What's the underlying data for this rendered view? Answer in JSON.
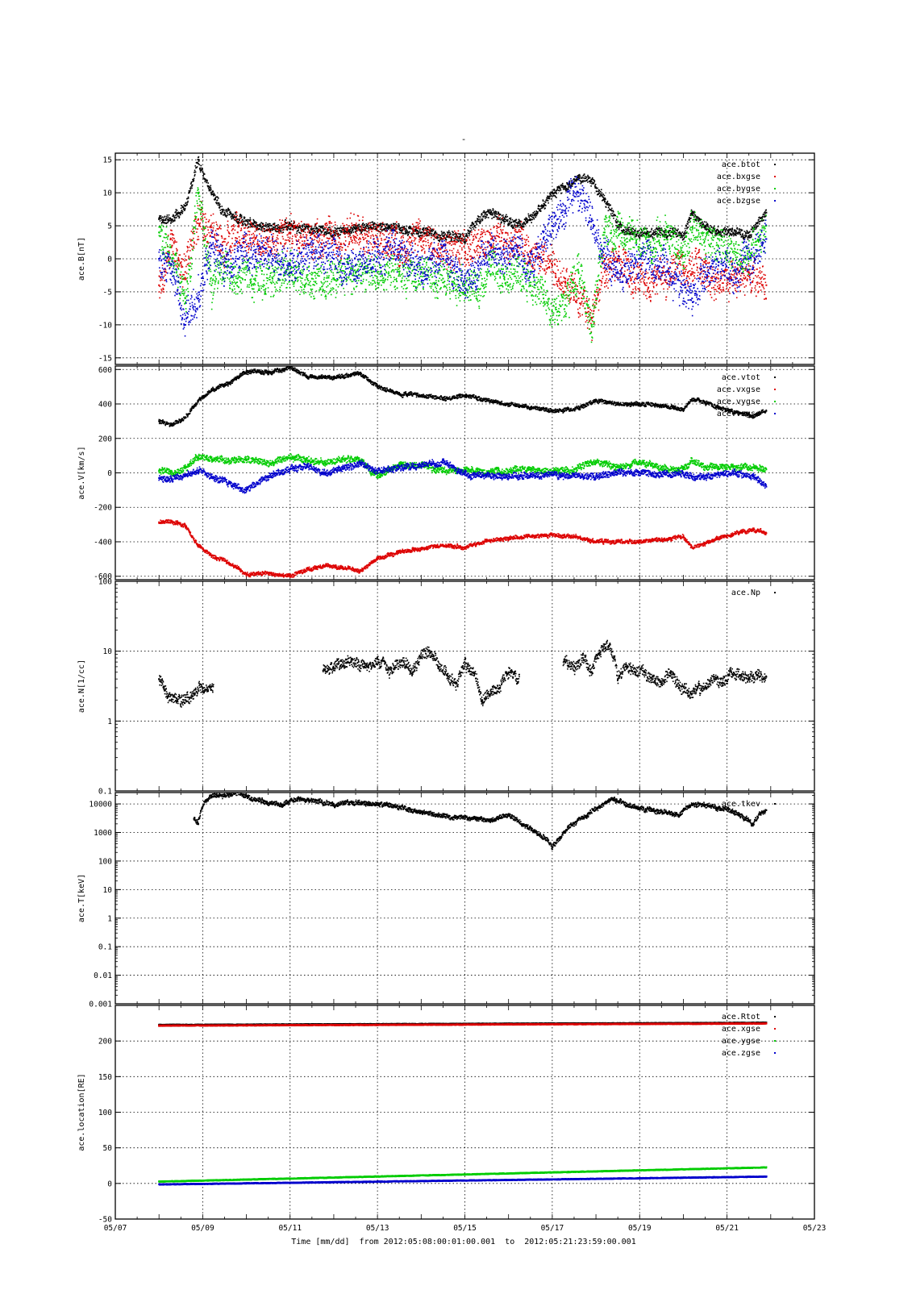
{
  "figure": {
    "title": "-",
    "footer": "Time [mm/dd]  from 2012:05:08:00:01:00.001  to  2012:05:21:23:59:00.001"
  },
  "chart_data": [
    {
      "type": "scatter",
      "ylabel": "ace.B[nT]",
      "xlim": [
        "05/07",
        "05/23"
      ],
      "ylim": [
        -16,
        16
      ],
      "yticks": [
        -15,
        -10,
        -5,
        0,
        5,
        10,
        15
      ],
      "ytick_labels": [
        "-15",
        "-10",
        "-5",
        "0",
        "5",
        "10",
        "15"
      ],
      "yscale": "linear",
      "grid": true,
      "legend": "top-right",
      "series": [
        {
          "name": "ace.btot",
          "color": "#000000",
          "x": [
            8.0,
            8.3,
            8.6,
            8.9,
            9.2,
            9.5,
            9.8,
            10.2,
            10.6,
            11.0,
            11.5,
            12.0,
            12.5,
            13.0,
            13.5,
            14.0,
            14.5,
            15.0,
            15.3,
            15.6,
            15.9,
            16.2,
            16.5,
            16.8,
            17.0,
            17.3,
            17.6,
            17.9,
            18.2,
            18.5,
            18.8,
            19.2,
            19.6,
            20.0,
            20.2,
            20.5,
            20.8,
            21.2,
            21.5,
            21.9
          ],
          "y": [
            6,
            6,
            8,
            15,
            10,
            7,
            6,
            5,
            4.5,
            5,
            4.5,
            4,
            4.5,
            5,
            4.5,
            4,
            3.5,
            3,
            6,
            7,
            6,
            5,
            6,
            8,
            10,
            11,
            12,
            12,
            9,
            5,
            4,
            4,
            4,
            3.5,
            7,
            5,
            4,
            4,
            3.5,
            7
          ]
        },
        {
          "name": "ace.bxgse",
          "color": "#dd0000",
          "x": [
            8.0,
            8.3,
            8.6,
            8.9,
            9.2,
            9.5,
            9.8,
            10.2,
            10.6,
            11.0,
            11.5,
            12.0,
            12.5,
            13.0,
            13.5,
            14.0,
            14.5,
            15.0,
            15.3,
            15.6,
            15.9,
            16.2,
            16.5,
            16.8,
            17.0,
            17.3,
            17.6,
            17.9,
            18.2,
            18.5,
            18.8,
            19.2,
            19.6,
            20.0,
            20.2,
            20.5,
            20.8,
            21.2,
            21.5,
            21.9
          ],
          "y": [
            -4,
            2,
            -2,
            6,
            4,
            3,
            4,
            3,
            3,
            4,
            3,
            3,
            4,
            3,
            2,
            3,
            2,
            1,
            2,
            3,
            3,
            2,
            1,
            0,
            -1,
            -3,
            -6,
            -9,
            -2,
            0,
            -3,
            -3,
            -2,
            -1,
            -2,
            -2,
            -3,
            -3,
            -2,
            -4
          ]
        },
        {
          "name": "ace.bygse",
          "color": "#00cc00",
          "x": [
            8.0,
            8.3,
            8.6,
            8.9,
            9.2,
            9.5,
            9.8,
            10.2,
            10.6,
            11.0,
            11.5,
            12.0,
            12.5,
            13.0,
            13.5,
            14.0,
            14.5,
            15.0,
            15.3,
            15.6,
            15.9,
            16.2,
            16.5,
            16.8,
            17.0,
            17.3,
            17.6,
            17.9,
            18.2,
            18.5,
            18.8,
            19.2,
            19.6,
            20.0,
            20.2,
            20.5,
            20.8,
            21.2,
            21.5,
            21.9
          ],
          "y": [
            4,
            0,
            -6,
            10,
            -4,
            -2,
            -3,
            -3,
            -3,
            -2,
            -3,
            -3,
            -2,
            -2,
            -2,
            -2,
            -3,
            -4,
            -5,
            -1,
            -3,
            -2,
            -4,
            -6,
            -8,
            -7,
            -2,
            -10,
            4,
            5,
            3,
            2,
            4,
            1,
            4,
            3,
            2,
            1,
            0,
            5
          ]
        },
        {
          "name": "ace.bzgse",
          "color": "#0000cc",
          "x": [
            8.0,
            8.3,
            8.6,
            8.9,
            9.2,
            9.5,
            9.8,
            10.2,
            10.6,
            11.0,
            11.5,
            12.0,
            12.5,
            13.0,
            13.5,
            14.0,
            14.5,
            15.0,
            15.3,
            15.6,
            15.9,
            16.2,
            16.5,
            16.8,
            17.0,
            17.3,
            17.6,
            17.9,
            18.2,
            18.5,
            18.8,
            19.2,
            19.6,
            20.0,
            20.2,
            20.5,
            20.8,
            21.2,
            21.5,
            21.9
          ],
          "y": [
            0,
            -2,
            -10,
            -6,
            2,
            -1,
            0,
            1,
            0,
            -1,
            1,
            0,
            -1,
            0,
            1,
            -2,
            0,
            -3,
            -1,
            2,
            0,
            1,
            -2,
            3,
            5,
            8,
            10,
            6,
            0,
            -2,
            -1,
            0,
            -2,
            -4,
            -6,
            -2,
            -1,
            -2,
            0,
            3
          ]
        }
      ]
    },
    {
      "type": "scatter",
      "ylabel": "ace.V[km/s]",
      "xlim": [
        "05/07",
        "05/23"
      ],
      "ylim": [
        -620,
        620
      ],
      "yticks": [
        -600,
        -400,
        -200,
        0,
        200,
        400,
        600
      ],
      "ytick_labels": [
        "-600",
        "-400",
        "-200",
        "0",
        "200",
        "400",
        "600"
      ],
      "yscale": "linear",
      "grid": true,
      "legend": "top-right",
      "series": [
        {
          "name": "ace.vtot",
          "color": "#000000",
          "x": [
            8.0,
            8.3,
            8.6,
            8.9,
            9.2,
            9.6,
            10.0,
            10.5,
            11.0,
            11.4,
            11.8,
            12.2,
            12.6,
            13.0,
            13.5,
            14.0,
            14.5,
            15.0,
            15.5,
            16.0,
            16.5,
            17.0,
            17.5,
            18.0,
            18.5,
            19.0,
            19.5,
            20.0,
            20.2,
            20.5,
            20.8,
            21.2,
            21.6,
            21.9
          ],
          "y": [
            300,
            280,
            320,
            420,
            480,
            520,
            590,
            580,
            610,
            560,
            550,
            560,
            580,
            500,
            460,
            450,
            430,
            450,
            420,
            400,
            380,
            360,
            370,
            420,
            400,
            400,
            390,
            370,
            430,
            410,
            380,
            350,
            330,
            360
          ]
        },
        {
          "name": "ace.vxgse",
          "color": "#dd0000",
          "x": [
            8.0,
            8.3,
            8.6,
            8.9,
            9.2,
            9.6,
            10.0,
            10.5,
            11.0,
            11.4,
            11.8,
            12.2,
            12.6,
            13.0,
            13.5,
            14.0,
            14.5,
            15.0,
            15.5,
            16.0,
            16.5,
            17.0,
            17.5,
            18.0,
            18.5,
            19.0,
            19.5,
            20.0,
            20.2,
            20.5,
            20.8,
            21.2,
            21.6,
            21.9
          ],
          "y": [
            -290,
            -280,
            -310,
            -420,
            -480,
            -520,
            -590,
            -580,
            -600,
            -560,
            -540,
            -550,
            -570,
            -500,
            -460,
            -440,
            -420,
            -430,
            -400,
            -380,
            -370,
            -360,
            -370,
            -400,
            -400,
            -400,
            -390,
            -370,
            -430,
            -410,
            -380,
            -350,
            -330,
            -350
          ]
        },
        {
          "name": "ace.vygse",
          "color": "#00cc00",
          "x": [
            8.0,
            8.3,
            8.6,
            8.9,
            9.2,
            9.6,
            10.0,
            10.5,
            11.0,
            11.4,
            11.8,
            12.2,
            12.6,
            13.0,
            13.5,
            14.0,
            14.5,
            15.0,
            15.5,
            16.0,
            16.5,
            17.0,
            17.5,
            18.0,
            18.5,
            19.0,
            19.5,
            20.0,
            20.2,
            20.5,
            20.8,
            21.2,
            21.6,
            21.9
          ],
          "y": [
            10,
            0,
            30,
            90,
            80,
            70,
            80,
            60,
            90,
            70,
            60,
            80,
            70,
            -20,
            50,
            40,
            10,
            20,
            10,
            10,
            20,
            10,
            20,
            70,
            30,
            60,
            30,
            20,
            70,
            40,
            30,
            30,
            30,
            20
          ]
        },
        {
          "name": "ace.vzgse",
          "color": "#0000cc",
          "x": [
            8.0,
            8.3,
            8.6,
            8.9,
            9.2,
            9.6,
            10.0,
            10.5,
            11.0,
            11.4,
            11.8,
            12.2,
            12.6,
            13.0,
            13.5,
            14.0,
            14.5,
            15.0,
            15.5,
            16.0,
            16.5,
            17.0,
            17.5,
            18.0,
            18.5,
            19.0,
            19.5,
            20.0,
            20.2,
            20.5,
            20.8,
            21.2,
            21.6,
            21.9
          ],
          "y": [
            -30,
            -40,
            -20,
            10,
            -20,
            -60,
            -100,
            -20,
            20,
            40,
            -10,
            30,
            50,
            10,
            30,
            40,
            60,
            -10,
            -20,
            -20,
            -10,
            -10,
            -20,
            -20,
            0,
            0,
            -10,
            0,
            -20,
            -30,
            -10,
            0,
            -20,
            -80
          ]
        }
      ]
    },
    {
      "type": "scatter",
      "ylabel": "ace.N[1/cc]",
      "xlim": [
        "05/07",
        "05/23"
      ],
      "ylim": [
        0.1,
        100
      ],
      "yticks": [
        0.1,
        1,
        10,
        100
      ],
      "ytick_labels": [
        "0.1",
        "1",
        "10",
        "100"
      ],
      "yscale": "log",
      "grid": true,
      "legend": "top-right",
      "series": [
        {
          "name": "ace.Np",
          "color": "#000000",
          "x": [
            8.0,
            8.2,
            8.4,
            8.6,
            8.8,
            9.0,
            9.2,
            11.8,
            12.1,
            12.4,
            12.7,
            13.0,
            13.3,
            13.6,
            13.8,
            14.0,
            14.2,
            14.4,
            14.6,
            14.8,
            15.0,
            15.2,
            15.4,
            15.6,
            15.8,
            16.0,
            16.2,
            17.3,
            17.5,
            17.7,
            17.9,
            18.1,
            18.3,
            18.5,
            18.7,
            18.9,
            19.1,
            19.3,
            19.5,
            19.7,
            19.9,
            20.1,
            20.3,
            20.5,
            20.7,
            20.9,
            21.1,
            21.3,
            21.5,
            21.7,
            21.9
          ],
          "y": [
            4,
            2.2,
            1.9,
            2.0,
            2.5,
            3.0,
            2.8,
            5.5,
            6.5,
            7,
            6,
            6.5,
            5.5,
            7,
            5,
            8,
            10,
            6,
            4.5,
            3.5,
            6,
            5,
            2,
            2.5,
            3,
            5,
            4,
            7,
            6,
            8,
            5,
            10,
            12,
            4,
            6,
            5,
            5,
            4,
            3.5,
            5,
            3,
            2.5,
            2.8,
            3,
            4,
            3.5,
            5,
            4.5,
            4,
            4.5,
            4.3
          ]
        }
      ]
    },
    {
      "type": "scatter",
      "ylabel": "ace.T[keV]",
      "xlim": [
        "05/07",
        "05/23"
      ],
      "ylim": [
        0.001,
        25000
      ],
      "yticks": [
        0.001,
        0.01,
        0.1,
        1,
        10,
        100,
        1000,
        10000
      ],
      "ytick_labels": [
        "0.001",
        "0.01",
        "0.1",
        "1",
        "10",
        "100",
        "1000",
        "10000"
      ],
      "yscale": "log",
      "grid": true,
      "legend": "top-right",
      "series": [
        {
          "name": "ace.tkev",
          "color": "#000000",
          "x": [
            8.8,
            8.9,
            9.0,
            9.2,
            9.5,
            9.8,
            10.1,
            10.4,
            10.8,
            11.2,
            11.6,
            12.0,
            12.4,
            12.8,
            13.2,
            13.6,
            14.0,
            14.4,
            14.8,
            15.2,
            15.6,
            16.0,
            16.3,
            16.6,
            16.9,
            17.0,
            17.2,
            17.5,
            17.8,
            18.1,
            18.4,
            18.7,
            19.0,
            19.3,
            19.6,
            19.9,
            20.2,
            20.5,
            20.8,
            21.1,
            21.4,
            21.6,
            21.8,
            21.9
          ],
          "y": [
            3000,
            2000,
            8000,
            20000,
            18000,
            25000,
            15000,
            12000,
            9000,
            15000,
            13000,
            9000,
            12000,
            10000,
            9000,
            7000,
            5000,
            4000,
            3500,
            3000,
            2500,
            4000,
            2000,
            1000,
            500,
            300,
            700,
            2000,
            4000,
            8000,
            15000,
            9000,
            7000,
            6000,
            5000,
            4000,
            10000,
            9000,
            7000,
            6000,
            3000,
            2000,
            5000,
            6000
          ]
        }
      ]
    },
    {
      "type": "scatter",
      "ylabel": "ace.location[RE]",
      "xlabel": "Time [mm/dd]",
      "xlim": [
        "05/07",
        "05/23"
      ],
      "ylim": [
        -50,
        250
      ],
      "yticks": [
        -50,
        0,
        50,
        100,
        150,
        200
      ],
      "ytick_labels": [
        "-50",
        "0",
        "50",
        "100",
        "150",
        "200"
      ],
      "yscale": "linear",
      "grid": true,
      "legend": "top-right",
      "xticks": [
        "05/07",
        "05/09",
        "05/11",
        "05/13",
        "05/15",
        "05/17",
        "05/19",
        "05/21",
        "05/23"
      ],
      "series": [
        {
          "name": "ace.Rtot",
          "color": "#000000",
          "x": [
            8.0,
            21.9
          ],
          "y": [
            223,
            226
          ]
        },
        {
          "name": "ace.xgse",
          "color": "#dd0000",
          "x": [
            8.0,
            21.9
          ],
          "y": [
            222,
            225
          ]
        },
        {
          "name": "ace.ygse",
          "color": "#00cc00",
          "x": [
            8.0,
            21.9
          ],
          "y": [
            3,
            23
          ]
        },
        {
          "name": "ace.zgse",
          "color": "#0000cc",
          "x": [
            8.0,
            21.9
          ],
          "y": [
            -1,
            10
          ]
        }
      ]
    }
  ]
}
